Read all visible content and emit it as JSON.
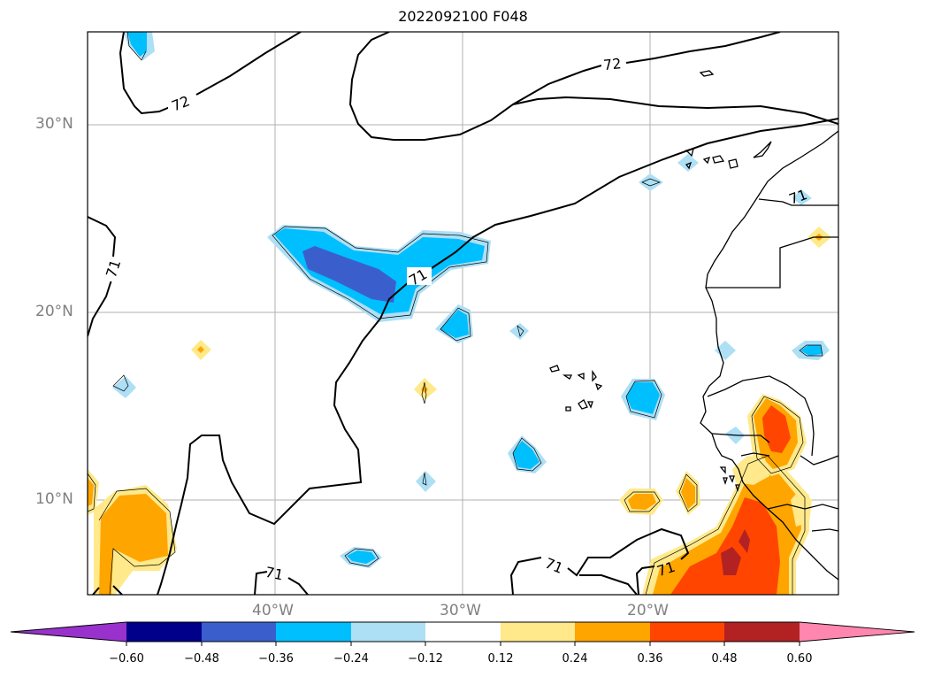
{
  "title": "2022092100 F048",
  "map": {
    "lat_labels": [
      "30°N",
      "20°N",
      "10°N"
    ],
    "lon_labels": [
      "40°W",
      "30°W",
      "20°W"
    ],
    "contour_labels": [
      "72",
      "72",
      "71",
      "71",
      "71",
      "71",
      "71",
      "71"
    ]
  },
  "colorbar": {
    "ticks": [
      "−0.60",
      "−0.48",
      "−0.36",
      "−0.24",
      "−0.12",
      "0.12",
      "0.24",
      "0.36",
      "0.48",
      "0.60"
    ],
    "colors": [
      "#9932CC",
      "#00008B",
      "#3A5FCD",
      "#00BFFF",
      "#ADDFF5",
      "#FFFFFF",
      "#FFE98A",
      "#FFA500",
      "#FF4500",
      "#B22222",
      "#FF86AE"
    ]
  }
}
